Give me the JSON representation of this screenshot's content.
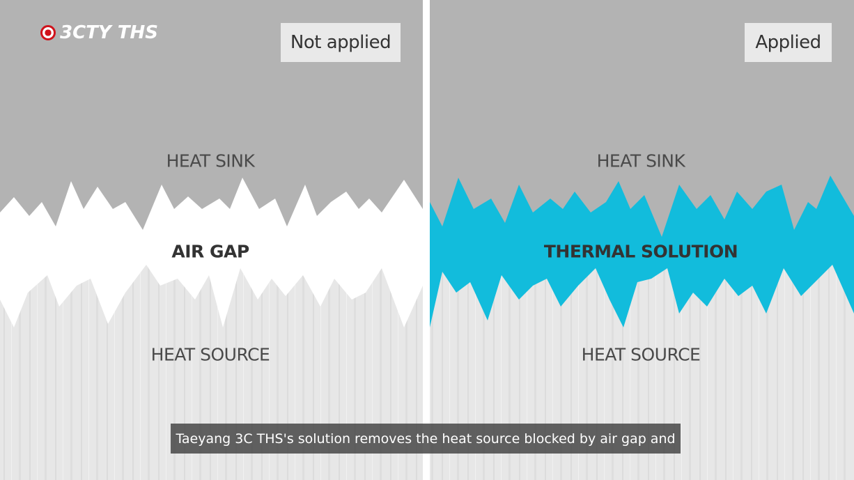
{
  "logo": "3CTY THS",
  "left": {
    "badge": "Not applied",
    "top": "HEAT SINK",
    "middle": "AIR GAP",
    "bottom": "HEAT SOURCE"
  },
  "right": {
    "badge": "Applied",
    "top": "HEAT SINK",
    "middle": "THERMAL SOLUTION",
    "bottom": "HEAT SOURCE"
  },
  "caption": "Taeyang 3C THS's solution removes the heat source blocked by air gap and"
}
